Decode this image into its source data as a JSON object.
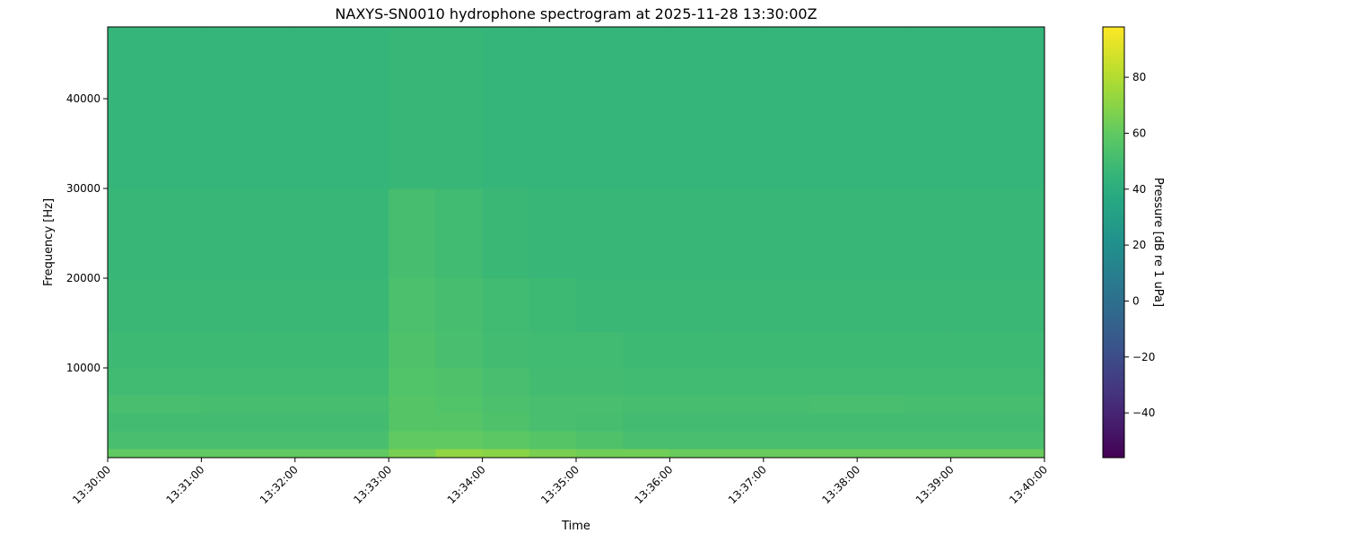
{
  "chart_data": {
    "type": "heatmap",
    "title": "NAXYS-SN0010 hydrophone spectrogram at 2025-11-28 13:30:00Z",
    "xlabel": "Time",
    "ylabel": "Frequency [Hz]",
    "colorbar_label": "Pressure [dB re 1 uPa]",
    "colormap": "viridis",
    "clim": [
      -56,
      98
    ],
    "xlim": [
      "13:30:00",
      "13:40:00"
    ],
    "ylim": [
      0,
      48000
    ],
    "x_ticks": [
      "13:30:00",
      "13:31:00",
      "13:32:00",
      "13:33:00",
      "13:34:00",
      "13:35:00",
      "13:36:00",
      "13:37:00",
      "13:38:00",
      "13:39:00",
      "13:40:00"
    ],
    "y_ticks": [
      10000,
      20000,
      30000,
      40000
    ],
    "colorbar_ticks": [
      -40,
      -20,
      0,
      20,
      40,
      60,
      80
    ],
    "time_bins": [
      "13:30:00",
      "13:30:30",
      "13:31:00",
      "13:31:30",
      "13:32:00",
      "13:32:30",
      "13:33:00",
      "13:33:30",
      "13:34:00",
      "13:34:30",
      "13:35:00",
      "13:35:30",
      "13:36:00",
      "13:36:30",
      "13:37:00",
      "13:37:30",
      "13:38:00",
      "13:38:30",
      "13:39:00",
      "13:39:30",
      "13:40:00"
    ],
    "frequency_bins_hz": [
      0,
      1000,
      3000,
      5000,
      7000,
      10000,
      14000,
      20000,
      30000,
      48000
    ],
    "values_db": [
      [
        60,
        60,
        60,
        60,
        60,
        60,
        66,
        72,
        70,
        66,
        64,
        64,
        62,
        62,
        62,
        62,
        62,
        62,
        62,
        62
      ],
      [
        52,
        52,
        52,
        52,
        52,
        52,
        60,
        60,
        58,
        56,
        54,
        52,
        52,
        52,
        52,
        52,
        52,
        52,
        52,
        52
      ],
      [
        50,
        50,
        50,
        50,
        50,
        50,
        56,
        56,
        54,
        52,
        51,
        50,
        50,
        50,
        50,
        50,
        50,
        50,
        50,
        50
      ],
      [
        52,
        52,
        51,
        51,
        51,
        51,
        56,
        55,
        53,
        52,
        52,
        51,
        51,
        51,
        51,
        52,
        52,
        51,
        51,
        51
      ],
      [
        49,
        49,
        49,
        49,
        49,
        49,
        55,
        54,
        52,
        50,
        50,
        49,
        49,
        49,
        49,
        49,
        49,
        49,
        49,
        49
      ],
      [
        48,
        48,
        48,
        48,
        48,
        48,
        54,
        52,
        50,
        49,
        49,
        48,
        48,
        48,
        48,
        48,
        48,
        48,
        48,
        48
      ],
      [
        47,
        47,
        47,
        47,
        47,
        47,
        53,
        51,
        49,
        48,
        47,
        47,
        47,
        47,
        47,
        47,
        47,
        47,
        47,
        47
      ],
      [
        46,
        46,
        46,
        46,
        46,
        46,
        51,
        49,
        47,
        46,
        46,
        46,
        46,
        46,
        46,
        46,
        46,
        46,
        46,
        46
      ],
      [
        45,
        45,
        45,
        45,
        45,
        45,
        46,
        46,
        45,
        45,
        45,
        45,
        45,
        45,
        45,
        45,
        45,
        45,
        45,
        45
      ]
    ]
  }
}
